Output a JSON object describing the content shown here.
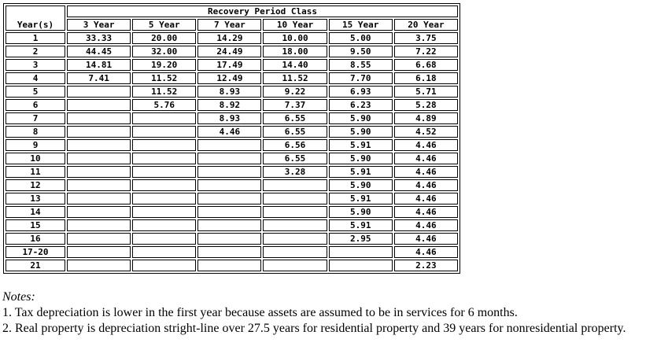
{
  "table": {
    "corner_label": "Year(s)",
    "group_header": "Recovery Period Class",
    "columns": [
      "3 Year",
      "5 Year",
      "7 Year",
      "10 Year",
      "15 Year",
      "20 Year"
    ],
    "rows": [
      {
        "year": "1",
        "values": [
          "33.33",
          "20.00",
          "14.29",
          "10.00",
          "5.00",
          "3.75"
        ]
      },
      {
        "year": "2",
        "values": [
          "44.45",
          "32.00",
          "24.49",
          "18.00",
          "9.50",
          "7.22"
        ]
      },
      {
        "year": "3",
        "values": [
          "14.81",
          "19.20",
          "17.49",
          "14.40",
          "8.55",
          "6.68"
        ]
      },
      {
        "year": "4",
        "values": [
          "7.41",
          "11.52",
          "12.49",
          "11.52",
          "7.70",
          "6.18"
        ]
      },
      {
        "year": "5",
        "values": [
          "",
          "11.52",
          "8.93",
          "9.22",
          "6.93",
          "5.71"
        ]
      },
      {
        "year": "6",
        "values": [
          "",
          "5.76",
          "8.92",
          "7.37",
          "6.23",
          "5.28"
        ]
      },
      {
        "year": "7",
        "values": [
          "",
          "",
          "8.93",
          "6.55",
          "5.90",
          "4.89"
        ]
      },
      {
        "year": "8",
        "values": [
          "",
          "",
          "4.46",
          "6.55",
          "5.90",
          "4.52"
        ]
      },
      {
        "year": "9",
        "values": [
          "",
          "",
          "",
          "6.56",
          "5.91",
          "4.46"
        ]
      },
      {
        "year": "10",
        "values": [
          "",
          "",
          "",
          "6.55",
          "5.90",
          "4.46"
        ]
      },
      {
        "year": "11",
        "values": [
          "",
          "",
          "",
          "3.28",
          "5.91",
          "4.46"
        ]
      },
      {
        "year": "12",
        "values": [
          "",
          "",
          "",
          "",
          "5.90",
          "4.46"
        ]
      },
      {
        "year": "13",
        "values": [
          "",
          "",
          "",
          "",
          "5.91",
          "4.46"
        ]
      },
      {
        "year": "14",
        "values": [
          "",
          "",
          "",
          "",
          "5.90",
          "4.46"
        ]
      },
      {
        "year": "15",
        "values": [
          "",
          "",
          "",
          "",
          "5.91",
          "4.46"
        ]
      },
      {
        "year": "16",
        "values": [
          "",
          "",
          "",
          "",
          "2.95",
          "4.46"
        ]
      },
      {
        "year": "17-20",
        "values": [
          "",
          "",
          "",
          "",
          "",
          "4.46"
        ]
      },
      {
        "year": "21",
        "values": [
          "",
          "",
          "",
          "",
          "",
          "2.23"
        ]
      }
    ]
  },
  "notes": {
    "heading": "Notes:",
    "items": [
      "1. Tax depreciation is lower in the first year because assets are assumed to be in services for 6 months.",
      "2. Real property is depreciation stright-line over 27.5 years for residential property and 39 years for nonresidential property."
    ]
  },
  "colors": {
    "border": "#000000",
    "text": "#000000",
    "background": "#ffffff"
  }
}
